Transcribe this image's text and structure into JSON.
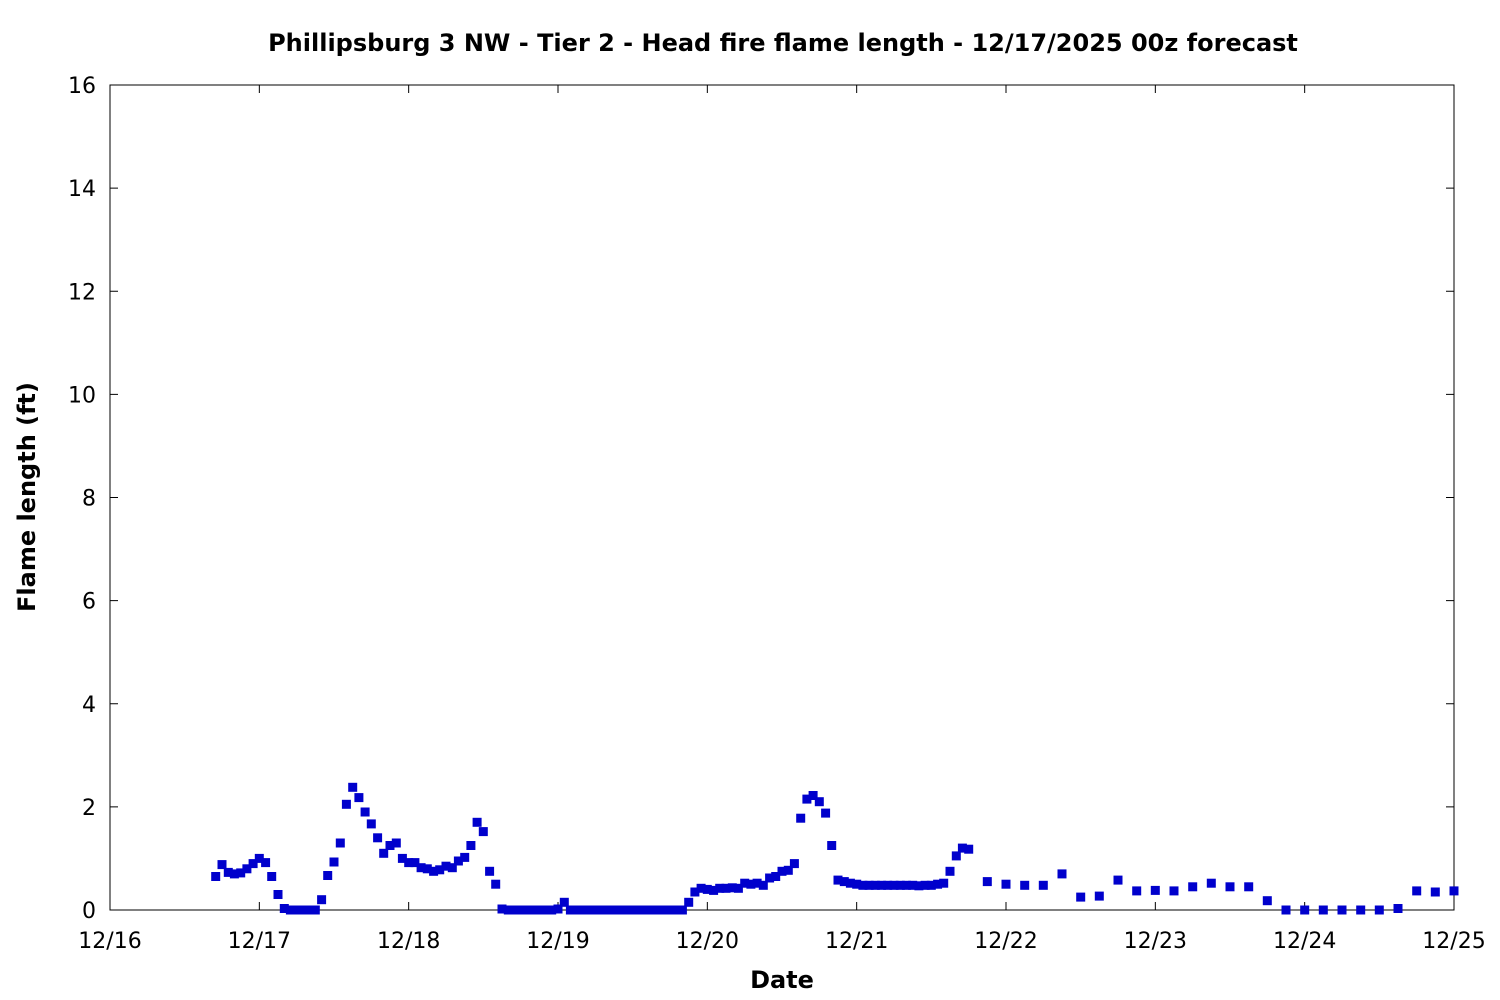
{
  "chart_data": {
    "type": "scatter",
    "title": "Phillipsburg 3 NW - Tier 2 - Head fire flame length - 12/17/2025 00z forecast",
    "xlabel": "Date",
    "ylabel": "Flame length (ft)",
    "x_unit": "days (0 = 12/16)",
    "xlim": [
      0,
      9
    ],
    "ylim": [
      0,
      16
    ],
    "x_ticks": [
      {
        "value": 0,
        "label": "12/16"
      },
      {
        "value": 1,
        "label": "12/17"
      },
      {
        "value": 2,
        "label": "12/18"
      },
      {
        "value": 3,
        "label": "12/19"
      },
      {
        "value": 4,
        "label": "12/20"
      },
      {
        "value": 5,
        "label": "12/21"
      },
      {
        "value": 6,
        "label": "12/22"
      },
      {
        "value": 7,
        "label": "12/23"
      },
      {
        "value": 8,
        "label": "12/24"
      },
      {
        "value": 9,
        "label": "12/25"
      }
    ],
    "y_ticks": [
      {
        "value": 0,
        "label": "0"
      },
      {
        "value": 2,
        "label": "2"
      },
      {
        "value": 4,
        "label": "4"
      },
      {
        "value": 6,
        "label": "6"
      },
      {
        "value": 8,
        "label": "8"
      },
      {
        "value": 10,
        "label": "10"
      },
      {
        "value": 12,
        "label": "12"
      },
      {
        "value": 14,
        "label": "14"
      },
      {
        "value": 16,
        "label": "16"
      }
    ],
    "grid": false,
    "marker_color": "#0000cc",
    "series": [
      {
        "name": "",
        "x": [
          0.708,
          0.75,
          0.792,
          0.833,
          0.875,
          0.917,
          0.958,
          1.0,
          1.042,
          1.083,
          1.125,
          1.167,
          1.208,
          1.25,
          1.292,
          1.333,
          1.375,
          1.417,
          1.458,
          1.5,
          1.542,
          1.583,
          1.625,
          1.667,
          1.708,
          1.75,
          1.792,
          1.833,
          1.875,
          1.917,
          1.958,
          2.0,
          2.042,
          2.083,
          2.125,
          2.167,
          2.208,
          2.25,
          2.292,
          2.333,
          2.375,
          2.417,
          2.458,
          2.5,
          2.542,
          2.583,
          2.625,
          2.667,
          2.708,
          2.75,
          2.792,
          2.833,
          2.875,
          2.917,
          2.958,
          3.0,
          3.042,
          3.083,
          3.125,
          3.167,
          3.208,
          3.25,
          3.292,
          3.333,
          3.375,
          3.417,
          3.458,
          3.5,
          3.542,
          3.583,
          3.625,
          3.667,
          3.708,
          3.75,
          3.792,
          3.833,
          3.875,
          3.917,
          3.958,
          4.0,
          4.042,
          4.083,
          4.125,
          4.167,
          4.208,
          4.25,
          4.292,
          4.333,
          4.375,
          4.417,
          4.458,
          4.5,
          4.542,
          4.583,
          4.625,
          4.667,
          4.708,
          4.75,
          4.792,
          4.833,
          4.875,
          4.917,
          4.958,
          5.0,
          5.042,
          5.083,
          5.125,
          5.167,
          5.208,
          5.25,
          5.292,
          5.333,
          5.375,
          5.417,
          5.458,
          5.5,
          5.542,
          5.583,
          5.625,
          5.667,
          5.708,
          5.75,
          5.875,
          6.0,
          6.125,
          6.25,
          6.375,
          6.5,
          6.625,
          6.75,
          6.875,
          7.0,
          7.125,
          7.25,
          7.375,
          7.5,
          7.625,
          7.75,
          7.875,
          8.0,
          8.125,
          8.25,
          8.375,
          8.5,
          8.625,
          8.75,
          8.875,
          9.0
        ],
        "y": [
          0.65,
          0.88,
          0.73,
          0.7,
          0.72,
          0.8,
          0.9,
          1.0,
          0.92,
          0.65,
          0.3,
          0.03,
          0.0,
          0.0,
          0.0,
          0.0,
          0.0,
          0.2,
          0.67,
          0.93,
          1.3,
          2.05,
          2.38,
          2.18,
          1.9,
          1.67,
          1.4,
          1.1,
          1.25,
          1.3,
          1.0,
          0.92,
          0.92,
          0.82,
          0.8,
          0.75,
          0.78,
          0.85,
          0.82,
          0.95,
          1.02,
          1.25,
          1.7,
          1.52,
          0.75,
          0.5,
          0.02,
          0.0,
          0.0,
          0.0,
          0.0,
          0.0,
          0.0,
          0.0,
          0.0,
          0.02,
          0.15,
          0.0,
          0.0,
          0.0,
          0.0,
          0.0,
          0.0,
          0.0,
          0.0,
          0.0,
          0.0,
          0.0,
          0.0,
          0.0,
          0.0,
          0.0,
          0.0,
          0.0,
          0.0,
          0.0,
          0.15,
          0.35,
          0.42,
          0.4,
          0.38,
          0.42,
          0.42,
          0.43,
          0.42,
          0.52,
          0.5,
          0.52,
          0.48,
          0.62,
          0.65,
          0.75,
          0.77,
          0.9,
          1.78,
          2.15,
          2.22,
          2.1,
          1.88,
          1.25,
          0.58,
          0.55,
          0.52,
          0.5,
          0.48,
          0.48,
          0.48,
          0.48,
          0.48,
          0.48,
          0.48,
          0.48,
          0.48,
          0.47,
          0.48,
          0.48,
          0.5,
          0.52,
          0.75,
          1.05,
          1.2,
          1.18,
          0.55,
          0.5,
          0.48,
          0.48,
          0.7,
          0.25,
          0.27,
          0.58,
          0.37,
          0.38,
          0.37,
          0.45,
          0.52,
          0.45,
          0.45,
          0.18,
          0.0,
          0.0,
          0.0,
          0.0,
          0.0,
          0.0,
          0.03,
          0.37,
          0.35,
          0.37
        ]
      }
    ]
  }
}
